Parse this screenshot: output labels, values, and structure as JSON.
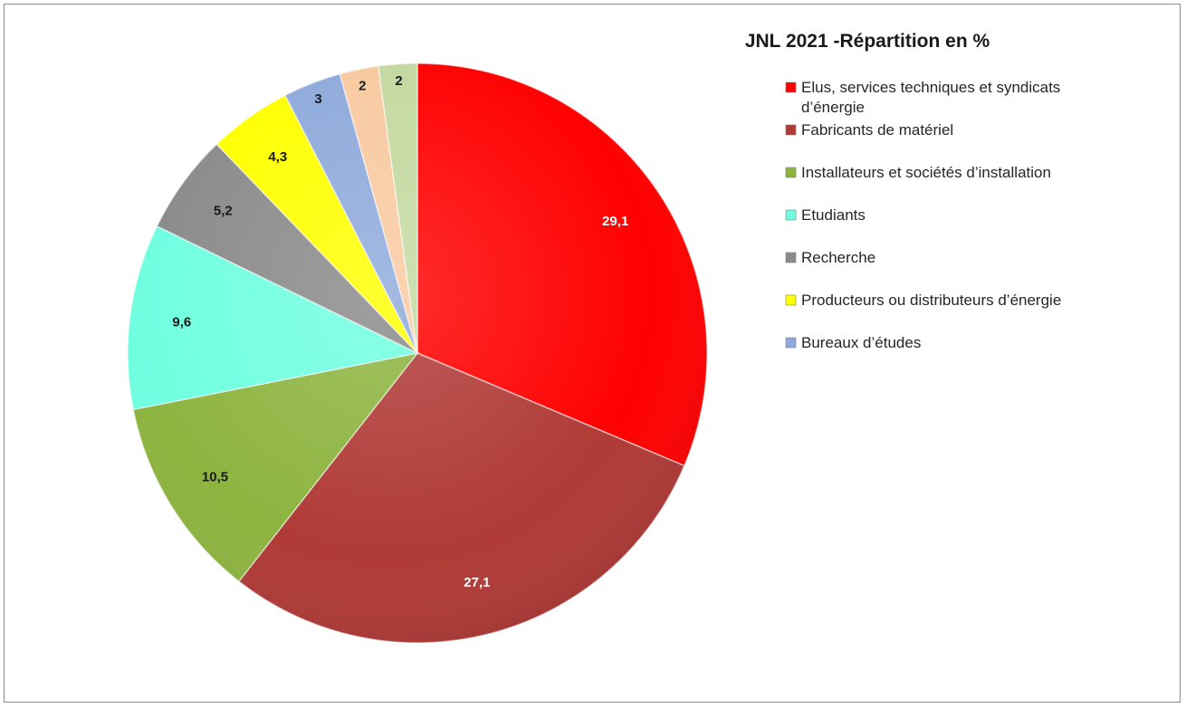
{
  "chart_data": {
    "type": "pie",
    "title": "JNL 2021 -Répartition en  %",
    "legend_position": "right",
    "slices": [
      {
        "name": "Elus, services techniques et syndicats d’énergie",
        "legend_lines": [
          "Elus, services techniques et syndicats",
          "d’énergie"
        ],
        "value": 29.1,
        "label": "29,1",
        "color": "#ff0000",
        "label_color": "#ffffff",
        "in_legend": true
      },
      {
        "name": "Fabricants de matériel",
        "legend_lines": [
          "Fabricants de matériel"
        ],
        "value": 27.1,
        "label": "27,1",
        "color": "#b03a36",
        "label_color": "#ffffff",
        "in_legend": true
      },
      {
        "name": "Installateurs et sociétés d’installation",
        "legend_lines": [
          "Installateurs et sociétés d’installation"
        ],
        "value": 10.5,
        "label": "10,5",
        "color": "#8db43f",
        "label_color": "#1a1a1a",
        "in_legend": true
      },
      {
        "name": "Etudiants",
        "legend_lines": [
          "Etudiants"
        ],
        "value": 9.6,
        "label": "9,6",
        "color": "#6fffe0",
        "label_color": "#1a1a1a",
        "in_legend": true
      },
      {
        "name": "Recherche",
        "legend_lines": [
          "Recherche"
        ],
        "value": 5.2,
        "label": "5,2",
        "color": "#8a8a8a",
        "label_color": "#1a1a1a",
        "in_legend": true
      },
      {
        "name": "Producteurs ou distributeurs d’énergie",
        "legend_lines": [
          "Producteurs ou distributeurs d’énergie"
        ],
        "value": 4.3,
        "label": "4,3",
        "color": "#ffff00",
        "label_color": "#1a1a1a",
        "in_legend": true
      },
      {
        "name": "Bureaux d’études",
        "legend_lines": [
          "Bureaux d’études"
        ],
        "value": 3,
        "label": "3",
        "color": "#8eaadb",
        "label_color": "#1a1a1a",
        "in_legend": true
      },
      {
        "name": "",
        "legend_lines": [],
        "value": 2,
        "label": "2",
        "color": "#f8c9a0",
        "label_color": "#1a1a1a",
        "in_legend": false
      },
      {
        "name": "",
        "legend_lines": [],
        "value": 2,
        "label": "2",
        "color": "#c3d9a0",
        "label_color": "#1a1a1a",
        "in_legend": false
      }
    ]
  }
}
